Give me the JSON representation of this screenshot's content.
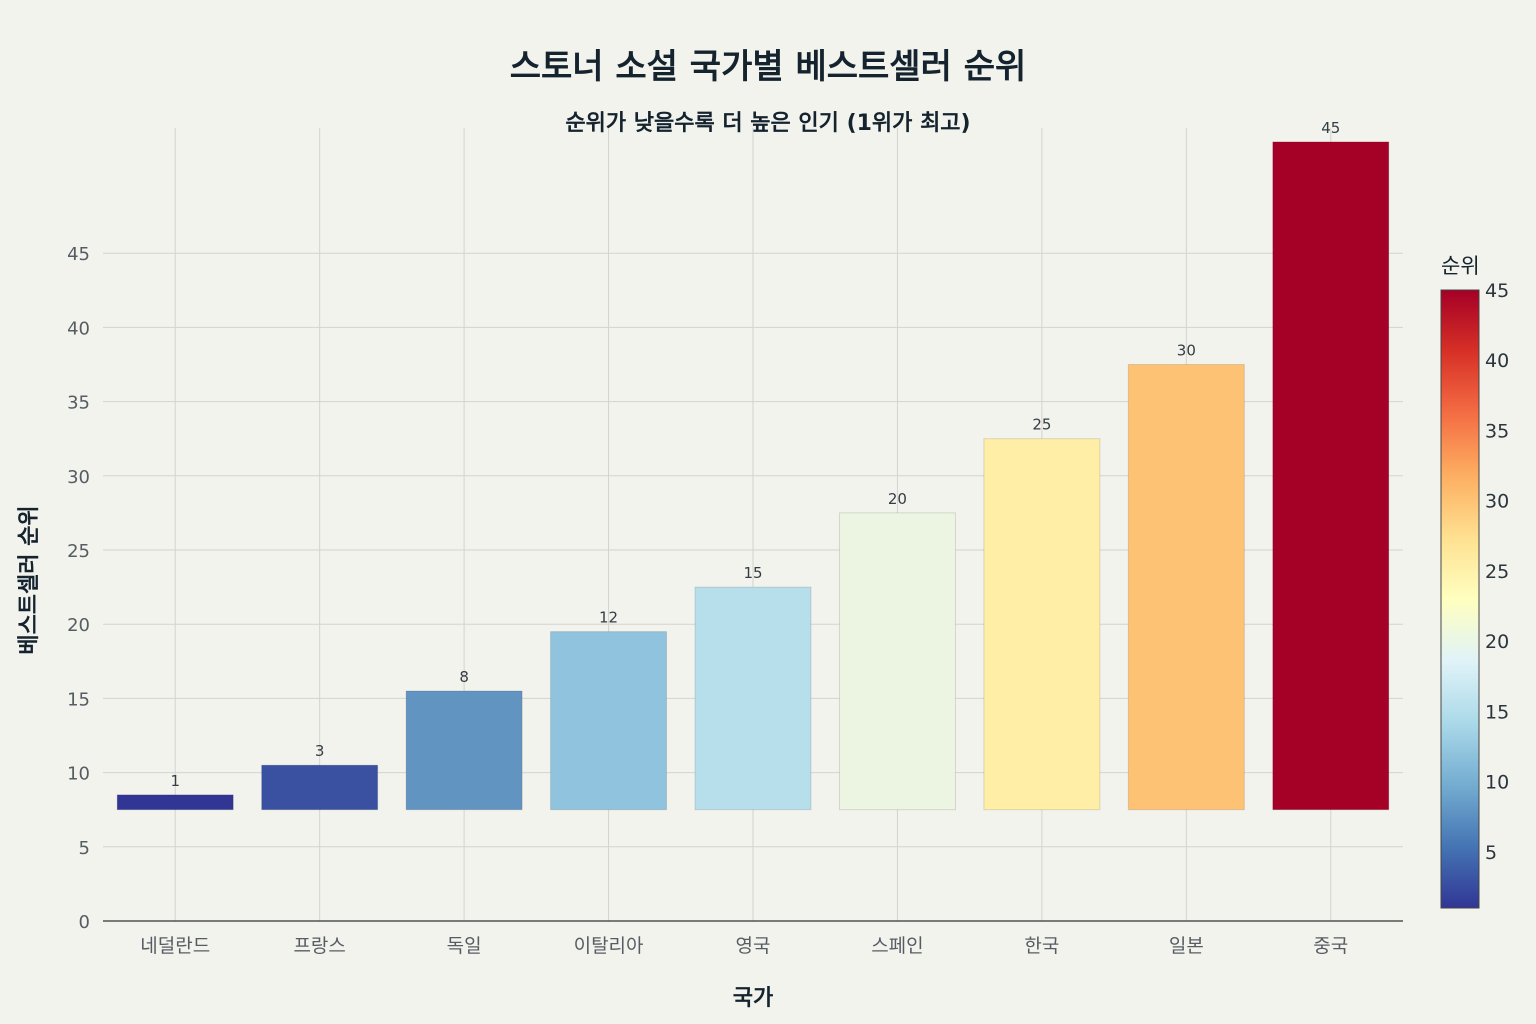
{
  "chart_data": {
    "type": "bar",
    "title": "스토너 소설 국가별 베스트셀러 순위",
    "subtitle": "순위가 낮을수록 더 높은 인기 (1위가 최고)",
    "xlabel": "국가",
    "ylabel": "베스트셀러 순위",
    "categories": [
      "네덜란드",
      "프랑스",
      "독일",
      "이탈리아",
      "영국",
      "스페인",
      "한국",
      "일본",
      "중국"
    ],
    "values": [
      1,
      3,
      8,
      12,
      15,
      20,
      25,
      30,
      45
    ],
    "bar_base": 7.5,
    "bar_tops": [
      8.5,
      10.5,
      15.5,
      19.5,
      22.5,
      27.5,
      32.5,
      37.5,
      52.5
    ],
    "data_labels": [
      "1",
      "3",
      "8",
      "12",
      "15",
      "20",
      "25",
      "30",
      "45"
    ],
    "ylim": [
      0,
      53
    ],
    "yticks": [
      0,
      5,
      10,
      15,
      20,
      25,
      30,
      35,
      40,
      45
    ],
    "grid": true,
    "colorscale": "RdYlBu reversed",
    "colorbar": {
      "title": "순위",
      "range": [
        1,
        45
      ],
      "ticks": [
        5,
        10,
        15,
        20,
        25,
        30,
        35,
        40,
        45
      ]
    },
    "bar_colors": [
      "#313695",
      "#3a51a2",
      "#6294c2",
      "#90c3dd",
      "#b7deeb",
      "#ecf5e2",
      "#feeea6",
      "#fdc274",
      "#a50026"
    ]
  }
}
